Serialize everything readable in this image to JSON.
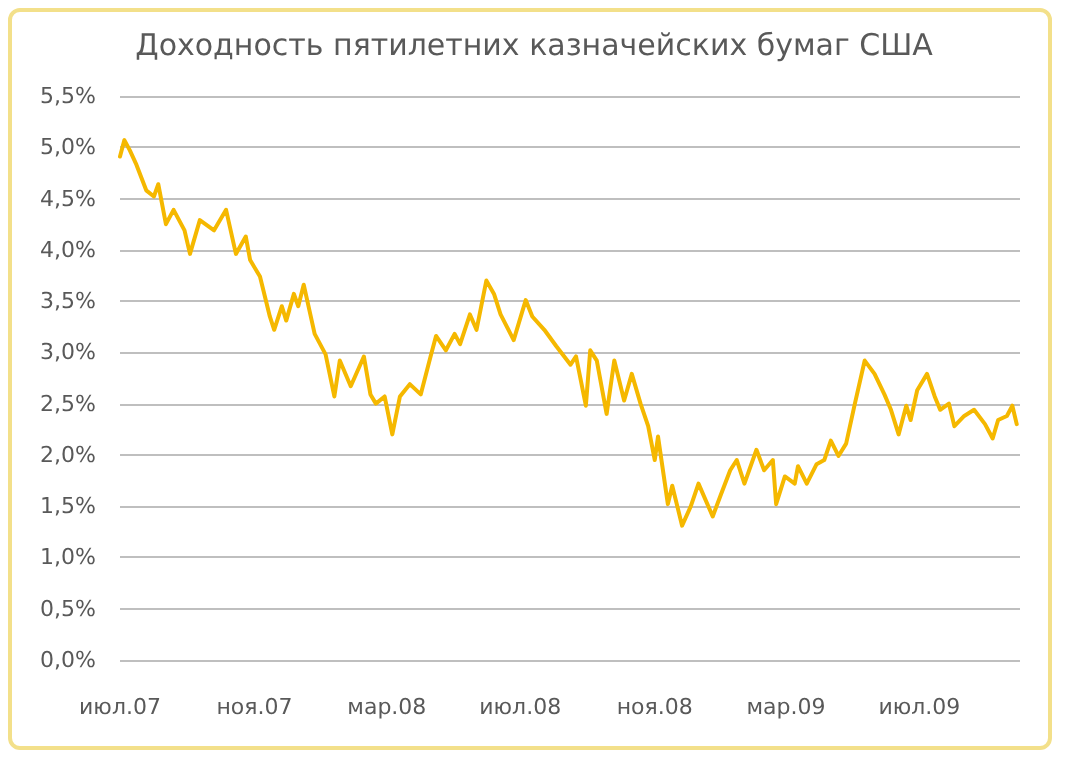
{
  "chart_data": {
    "type": "line",
    "title": "Доходность пятилетних казначейских бумаг США",
    "x": [
      "2007-07-01",
      "2007-07-05",
      "2007-07-10",
      "2007-07-16",
      "2007-07-25",
      "2007-08-01",
      "2007-08-05",
      "2007-08-12",
      "2007-08-19",
      "2007-08-29",
      "2007-09-03",
      "2007-09-12",
      "2007-09-25",
      "2007-10-06",
      "2007-10-15",
      "2007-10-24",
      "2007-10-28",
      "2007-11-06",
      "2007-11-15",
      "2007-11-19",
      "2007-11-26",
      "2007-11-30",
      "2007-12-07",
      "2007-12-11",
      "2007-12-16",
      "2007-12-26",
      "2008-01-05",
      "2008-01-13",
      "2008-01-18",
      "2008-01-28",
      "2008-02-09",
      "2008-02-15",
      "2008-02-20",
      "2008-02-28",
      "2008-03-06",
      "2008-03-13",
      "2008-03-22",
      "2008-04-01",
      "2008-04-10",
      "2008-04-15",
      "2008-04-24",
      "2008-05-02",
      "2008-05-07",
      "2008-05-16",
      "2008-05-22",
      "2008-05-31",
      "2008-06-07",
      "2008-06-13",
      "2008-06-25",
      "2008-07-06",
      "2008-07-12",
      "2008-07-23",
      "2008-08-03",
      "2008-08-16",
      "2008-08-21",
      "2008-08-30",
      "2008-09-03",
      "2008-09-09",
      "2008-09-18",
      "2008-09-25",
      "2008-10-04",
      "2008-10-11",
      "2008-10-19",
      "2008-10-26",
      "2008-11-01",
      "2008-11-04",
      "2008-11-13",
      "2008-11-17",
      "2008-11-26",
      "2008-12-04",
      "2008-12-11",
      "2008-12-24",
      "2008-12-31",
      "2009-01-09",
      "2009-01-15",
      "2009-01-22",
      "2009-02-02",
      "2009-02-09",
      "2009-02-17",
      "2009-02-20",
      "2009-02-28",
      "2009-03-09",
      "2009-03-12",
      "2009-03-20",
      "2009-03-29",
      "2009-04-05",
      "2009-04-11",
      "2009-04-18",
      "2009-04-25",
      "2009-05-03",
      "2009-05-12",
      "2009-05-21",
      "2009-05-30",
      "2009-06-05",
      "2009-06-12",
      "2009-06-19",
      "2009-06-23",
      "2009-06-29",
      "2009-07-08",
      "2009-07-15",
      "2009-07-20",
      "2009-07-28",
      "2009-08-02",
      "2009-08-11",
      "2009-08-20",
      "2009-08-30",
      "2009-09-06",
      "2009-09-11",
      "2009-09-19",
      "2009-09-24",
      "2009-09-28"
    ],
    "series": [
      {
        "color": "#f5b800",
        "values": [
          4.91,
          5.07,
          4.97,
          4.83,
          4.58,
          4.52,
          4.64,
          4.25,
          4.39,
          4.19,
          3.96,
          4.29,
          4.19,
          4.39,
          3.96,
          4.13,
          3.9,
          3.74,
          3.35,
          3.22,
          3.45,
          3.31,
          3.57,
          3.45,
          3.66,
          3.18,
          2.98,
          2.57,
          2.92,
          2.67,
          2.96,
          2.59,
          2.5,
          2.57,
          2.2,
          2.57,
          2.69,
          2.59,
          2.96,
          3.16,
          3.02,
          3.18,
          3.08,
          3.37,
          3.22,
          3.7,
          3.57,
          3.37,
          3.12,
          3.51,
          3.35,
          3.22,
          3.06,
          2.88,
          2.96,
          2.48,
          3.02,
          2.92,
          2.4,
          2.92,
          2.53,
          2.79,
          2.5,
          2.28,
          1.95,
          2.18,
          1.52,
          1.7,
          1.31,
          1.5,
          1.72,
          1.4,
          1.6,
          1.85,
          1.95,
          1.72,
          2.05,
          1.85,
          1.95,
          1.52,
          1.79,
          1.72,
          1.89,
          1.72,
          1.91,
          1.95,
          2.14,
          1.99,
          2.11,
          2.5,
          2.92,
          2.79,
          2.59,
          2.44,
          2.2,
          2.48,
          2.34,
          2.63,
          2.79,
          2.57,
          2.44,
          2.5,
          2.28,
          2.38,
          2.44,
          2.3,
          2.16,
          2.34,
          2.38,
          2.48,
          2.3
        ]
      }
    ],
    "xlim": [
      "2007-07-01",
      "2009-10-01"
    ],
    "xticks": [
      {
        "value": "2007-07-01",
        "label": "июл.07"
      },
      {
        "value": "2007-11-01",
        "label": "ноя.07"
      },
      {
        "value": "2008-03-01",
        "label": "мар.08"
      },
      {
        "value": "2008-07-01",
        "label": "июл.08"
      },
      {
        "value": "2008-11-01",
        "label": "ноя.08"
      },
      {
        "value": "2009-03-01",
        "label": "мар.09"
      },
      {
        "value": "2009-07-01",
        "label": "июл.09"
      }
    ],
    "ylim": [
      0,
      5.5
    ],
    "yticks": [
      {
        "value": 0,
        "label": "0,0%"
      },
      {
        "value": 0.5,
        "label": "0,5%"
      },
      {
        "value": 1,
        "label": "1,0%"
      },
      {
        "value": 1.5,
        "label": "1,5%"
      },
      {
        "value": 2,
        "label": "2,0%"
      },
      {
        "value": 2.5,
        "label": "2,5%"
      },
      {
        "value": 3,
        "label": "3,0%"
      },
      {
        "value": 3.5,
        "label": "3,5%"
      },
      {
        "value": 4,
        "label": "4,0%"
      },
      {
        "value": 4.5,
        "label": "4,5%"
      },
      {
        "value": 5,
        "label": "5,0%"
      },
      {
        "value": 5.5,
        "label": "5,5%"
      }
    ],
    "grid": "y",
    "marker": "none",
    "line_style": "solid"
  }
}
